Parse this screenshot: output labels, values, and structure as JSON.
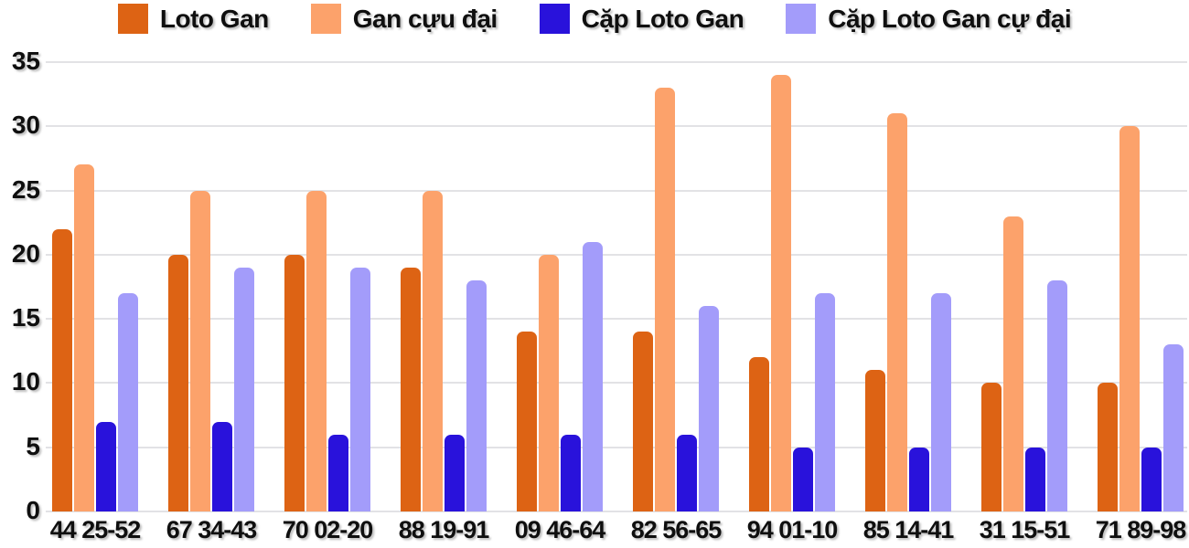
{
  "chart_data": {
    "type": "bar",
    "title": "",
    "xlabel": "",
    "ylabel": "",
    "categories": [
      "44 25-52",
      "67 34-43",
      "70 02-20",
      "88 19-91",
      "09 46-64",
      "82 56-65",
      "94 01-10",
      "85 14-41",
      "31 15-51",
      "71 89-98"
    ],
    "series": [
      {
        "name": "Loto Gan",
        "color": "#DD6314",
        "values": [
          22,
          20,
          20,
          19,
          14,
          14,
          12,
          11,
          10,
          10
        ]
      },
      {
        "name": "Gan cựu đại",
        "color": "#FCA26B",
        "values": [
          27,
          25,
          25,
          25,
          20,
          33,
          34,
          31,
          23,
          30
        ]
      },
      {
        "name": "Cặp Loto Gan",
        "color": "#2912DB",
        "values": [
          7,
          7,
          6,
          6,
          6,
          6,
          5,
          5,
          5,
          5
        ]
      },
      {
        "name": "Cặp Loto Gan cự đại",
        "color": "#A39CFA",
        "values": [
          17,
          19,
          19,
          18,
          21,
          16,
          17,
          17,
          18,
          13
        ]
      }
    ],
    "ylim": [
      0,
      35
    ],
    "yticks": [
      0,
      5,
      10,
      15,
      20,
      25,
      30,
      35
    ],
    "grid": true,
    "legend_position": "top"
  },
  "colors": {
    "background": "#FFFFFF",
    "gridline": "#E2E2E5",
    "text": "#0F0F0F"
  }
}
